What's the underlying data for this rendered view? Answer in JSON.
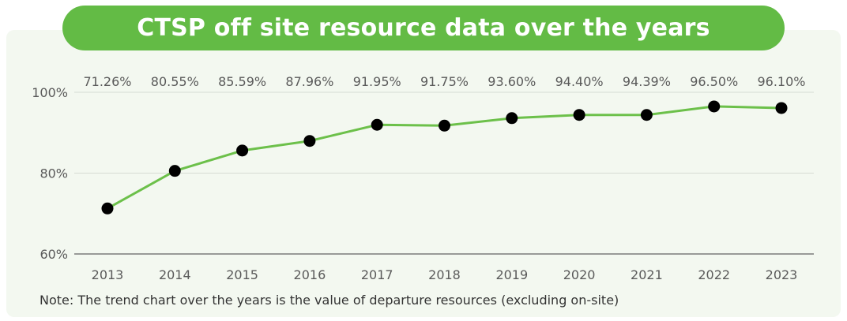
{
  "header": {
    "title": "CTSP off site resource data over the years"
  },
  "note": "Note: The trend chart over the years is the value of departure resources (excluding on-site)",
  "colors": {
    "title_bg": "#63bb45",
    "line": "#6cc04a",
    "point": "#000000",
    "panel_bg": "#f3f8f0"
  },
  "chart_data": {
    "type": "line",
    "categories": [
      "2013",
      "2014",
      "2015",
      "2016",
      "2017",
      "2018",
      "2019",
      "2020",
      "2021",
      "2022",
      "2023"
    ],
    "series": [
      {
        "values": [
          71.26,
          80.55,
          85.59,
          87.96,
          91.95,
          91.75,
          93.6,
          94.4,
          94.39,
          96.5,
          96.1
        ]
      }
    ],
    "data_labels": [
      "71.26%",
      "80.55%",
      "85.59%",
      "87.96%",
      "91.95%",
      "91.75%",
      "93.60%",
      "94.40%",
      "94.39%",
      "96.50%",
      "96.10%"
    ],
    "yticks": [
      {
        "value": 60,
        "label": "60%"
      },
      {
        "value": 80,
        "label": "80%"
      },
      {
        "value": 100,
        "label": "100%"
      }
    ],
    "ylim": [
      60,
      100
    ],
    "grid": true,
    "legend": "none"
  }
}
